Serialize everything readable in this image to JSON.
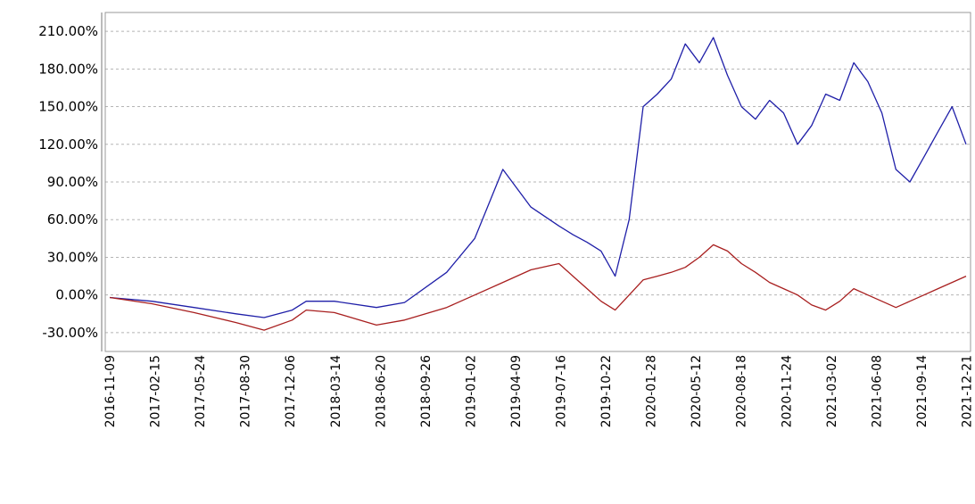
{
  "chart_data": {
    "type": "line",
    "title": "",
    "xlabel": "",
    "ylabel": "",
    "ylim": [
      -45,
      225
    ],
    "y_ticks": [
      210,
      180,
      150,
      120,
      90,
      60,
      30,
      0,
      -30
    ],
    "y_tick_labels": [
      "210.00%",
      "180.00%",
      "150.00%",
      "120.00%",
      "90.00%",
      "60.00%",
      "30.00%",
      "0.00%",
      "-30.00%"
    ],
    "x_tick_labels": [
      "2016-11-09",
      "2017-02-15",
      "2017-05-24",
      "2017-08-30",
      "2017-12-06",
      "2018-03-14",
      "2018-06-20",
      "2018-09-26",
      "2019-01-02",
      "2019-04-09",
      "2019-07-16",
      "2019-10-22",
      "2020-01-28",
      "2020-05-12",
      "2020-08-18",
      "2020-11-24",
      "2021-03-02",
      "2021-06-08",
      "2021-09-14",
      "2021-12-21"
    ],
    "grid": true,
    "series": [
      {
        "color": "#1f1fa8",
        "x": [
          0,
          3,
          6,
          9,
          11,
          13,
          14,
          16,
          19,
          21,
          24,
          26,
          28,
          30,
          32,
          33,
          34,
          35,
          36,
          37,
          38,
          39,
          40,
          41,
          42,
          43,
          44,
          45,
          46,
          47,
          48,
          49,
          50,
          51,
          52,
          53,
          54,
          55,
          56,
          57,
          58,
          59,
          60,
          61
        ],
        "y": [
          -2,
          -5,
          -10,
          -15,
          -18,
          -12,
          -5,
          -5,
          -10,
          -6,
          18,
          45,
          100,
          70,
          55,
          48,
          42,
          35,
          15,
          60,
          150,
          160,
          172,
          200,
          185,
          205,
          175,
          150,
          140,
          155,
          145,
          120,
          135,
          160,
          155,
          185,
          170,
          145,
          100,
          90,
          110,
          130,
          150,
          120
        ]
      },
      {
        "color": "#a81f1f",
        "x": [
          0,
          3,
          6,
          9,
          11,
          13,
          14,
          16,
          19,
          21,
          24,
          26,
          28,
          30,
          32,
          33,
          34,
          35,
          36,
          37,
          38,
          39,
          40,
          41,
          42,
          43,
          44,
          45,
          46,
          47,
          48,
          49,
          50,
          51,
          52,
          53,
          54,
          55,
          56,
          57,
          58,
          59,
          60,
          61
        ],
        "y": [
          -2,
          -7,
          -14,
          -22,
          -28,
          -20,
          -12,
          -14,
          -24,
          -20,
          -10,
          0,
          10,
          20,
          25,
          15,
          5,
          -5,
          -12,
          0,
          12,
          15,
          18,
          22,
          30,
          40,
          35,
          25,
          18,
          10,
          5,
          0,
          -8,
          -12,
          -5,
          5,
          0,
          -5,
          -10,
          -5,
          0,
          5,
          10,
          15
        ]
      }
    ]
  }
}
